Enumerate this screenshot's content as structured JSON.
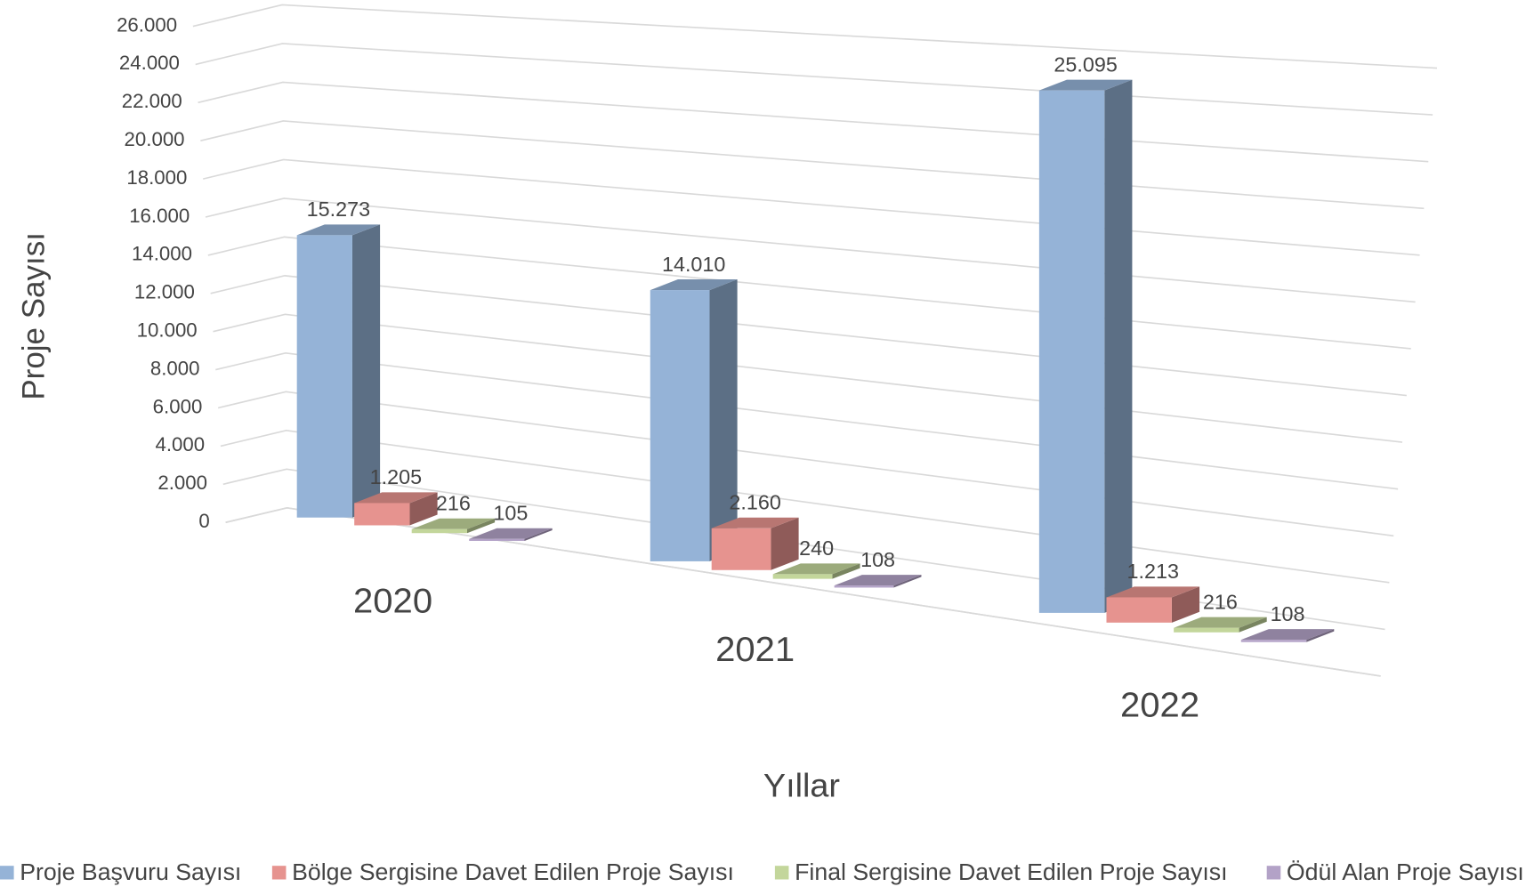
{
  "chart_data": {
    "type": "bar3d",
    "x_label": "Yıllar",
    "y_label": "Proje Sayısı",
    "categories": [
      "2020",
      "2021",
      "2022"
    ],
    "series": [
      {
        "name": "Proje Başvuru Sayısı",
        "color": "#95b3d7",
        "values": [
          15273,
          14010,
          25095
        ],
        "value_labels": [
          "15.273",
          "14.010",
          "25.095"
        ]
      },
      {
        "name": "Bölge Sergisine Davet Edilen Proje Sayısı",
        "color": "#e6938f",
        "values": [
          1205,
          2160,
          1213
        ],
        "value_labels": [
          "1.205",
          "2.160",
          "1.213"
        ]
      },
      {
        "name": "Final Sergisine Davet Edilen Proje Sayısı",
        "color": "#c3d69b",
        "values": [
          216,
          240,
          216
        ]
      },
      {
        "name": "Ödül Alan Proje Sayısı",
        "color": "#b3a2c7",
        "values": [
          105,
          108,
          108
        ]
      }
    ],
    "ylim": [
      0,
      26000
    ],
    "yticks": [
      0,
      {
        "value": 2000,
        "label": "2.000"
      },
      {
        "value": 4000,
        "label": "4.000"
      },
      {
        "value": 6000,
        "label": "6.000"
      },
      {
        "value": 8000,
        "label": "8.000"
      },
      {
        "value": 10000,
        "label": "10.000"
      },
      {
        "value": 12000,
        "label": "12.000"
      },
      {
        "value": 14000,
        "label": "14.000"
      },
      {
        "value": 16000,
        "label": "16.000"
      },
      {
        "value": 18000,
        "label": "18.000"
      },
      {
        "value": 20000,
        "label": "20.000"
      },
      {
        "value": 22000,
        "label": "22.000"
      },
      {
        "value": 24000,
        "label": "24.000"
      },
      {
        "value": 26000,
        "label": "26.000"
      }
    ],
    "grid": true,
    "legend": "bottom"
  }
}
